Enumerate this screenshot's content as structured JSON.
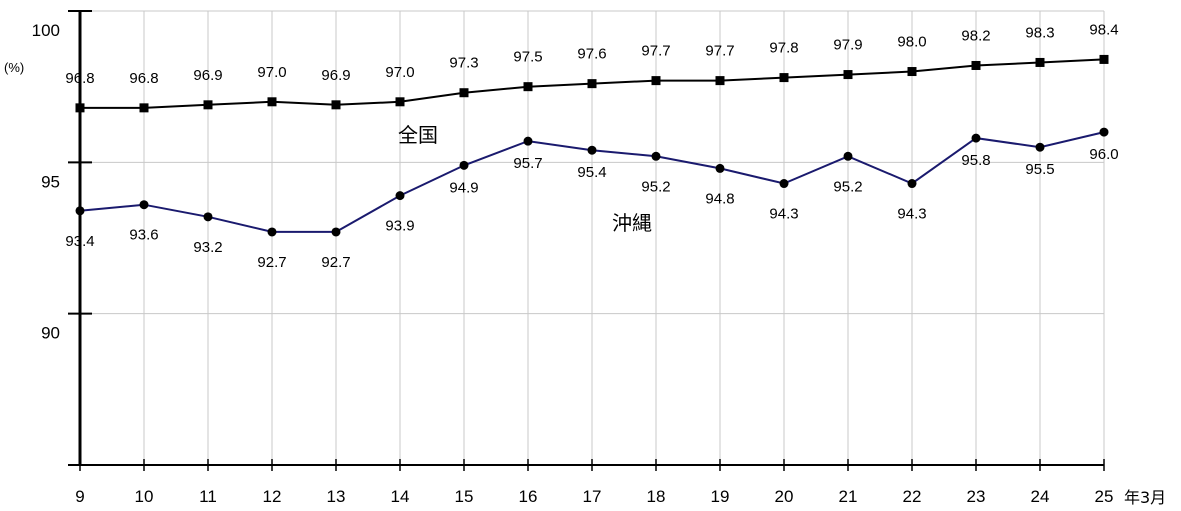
{
  "chart_data": {
    "type": "line",
    "x": [
      "9",
      "10",
      "11",
      "12",
      "13",
      "14",
      "15",
      "16",
      "17",
      "18",
      "19",
      "20",
      "21",
      "22",
      "23",
      "24",
      "25"
    ],
    "x_suffix": "年3月",
    "y_unit": "(%)",
    "ylim": [
      85,
      100
    ],
    "y_ticks": [
      "90",
      "95",
      "100"
    ],
    "grid": true,
    "series": [
      {
        "name": "全国",
        "color": "#000000",
        "marker": "square",
        "values": [
          96.8,
          96.8,
          96.9,
          97.0,
          96.9,
          97.0,
          97.3,
          97.5,
          97.6,
          97.7,
          97.7,
          97.8,
          97.9,
          98.0,
          98.2,
          98.3,
          98.4
        ],
        "labels": [
          "96.8",
          "96.8",
          "96.9",
          "97.0",
          "96.9",
          "97.0",
          "97.3",
          "97.5",
          "97.6",
          "97.7",
          "97.7",
          "97.8",
          "97.9",
          "98.0",
          "98.2",
          "98.3",
          "98.4"
        ]
      },
      {
        "name": "沖縄",
        "color": "#1a1a6e",
        "marker": "circle",
        "values": [
          93.4,
          93.6,
          93.2,
          92.7,
          92.7,
          93.9,
          94.9,
          95.7,
          95.4,
          95.2,
          94.8,
          94.3,
          95.2,
          94.3,
          95.8,
          95.5,
          96.0
        ],
        "labels": [
          "93.4",
          "93.6",
          "93.2",
          "92.7",
          "92.7",
          "93.9",
          "94.9",
          "95.7",
          "95.4",
          "95.2",
          "94.8",
          "94.3",
          "95.2",
          "94.3",
          "95.8",
          "95.5",
          "96.0"
        ]
      }
    ]
  }
}
